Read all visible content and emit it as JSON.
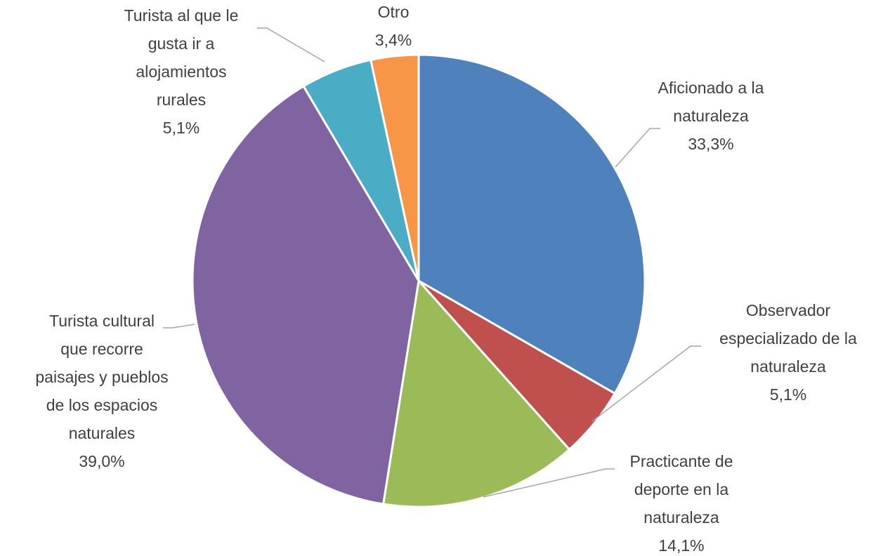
{
  "chart_data": {
    "type": "pie",
    "categories": [
      "Aficionado a la naturaleza",
      "Observador especializado de la naturaleza",
      "Practicante de deporte en la naturaleza",
      "Turista cultural que recorre paisajes y pueblos de los espacios naturales",
      "Turista al que le gusta ir a alojamientos rurales",
      "Otro"
    ],
    "values": [
      33.3,
      5.1,
      14.1,
      39.0,
      5.1,
      3.4
    ],
    "value_labels": [
      "33,3%",
      "5,1%",
      "14,1%",
      "39,0%",
      "5,1%",
      "3,4%"
    ],
    "colors": [
      "#4f81bd",
      "#c0504d",
      "#9bbb59",
      "#8064a2",
      "#4bacc6",
      "#f79646"
    ]
  }
}
